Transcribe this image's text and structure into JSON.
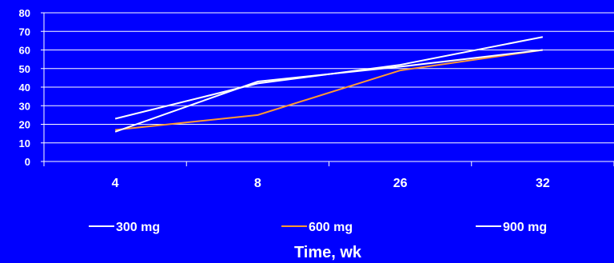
{
  "chart_data": {
    "type": "line",
    "categories": [
      "4",
      "8",
      "26",
      "32"
    ],
    "series": [
      {
        "name": "300 mg",
        "values": [
          23,
          42,
          52,
          67
        ],
        "color": "#ffffff"
      },
      {
        "name": "600 mg",
        "values": [
          17,
          25,
          49,
          60
        ],
        "color": "#ff9933"
      },
      {
        "name": "900 mg",
        "values": [
          16,
          43,
          51,
          60
        ],
        "color": "#ffffff"
      }
    ],
    "y_ticks": [
      "0",
      "10",
      "20",
      "30",
      "40",
      "50",
      "60",
      "70",
      "80"
    ],
    "ylim": [
      0,
      80
    ],
    "xlabel": "Time, wk",
    "grid": true,
    "legend_position": "bottom",
    "background_color": "#0000ff",
    "grid_color": "#ffffff"
  }
}
